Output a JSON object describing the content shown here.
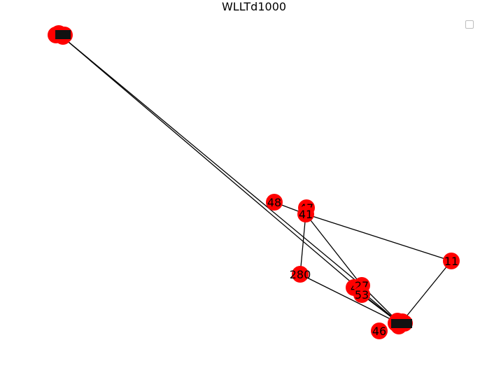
{
  "figure": {
    "title": "WLLTd1000",
    "legend": ""
  },
  "graph": {
    "node_color": "#ff0000",
    "edge_color": "#000000",
    "nodes": [
      {
        "id": "cluster_top",
        "label": "6"
      },
      {
        "id": "n48",
        "label": "48"
      },
      {
        "id": "n47",
        "label": "47"
      },
      {
        "id": "n41",
        "label": "41"
      },
      {
        "id": "n11",
        "label": "11"
      },
      {
        "id": "n280",
        "label": "280"
      },
      {
        "id": "n4",
        "label": "4"
      },
      {
        "id": "n27",
        "label": "27"
      },
      {
        "id": "n53",
        "label": "53"
      },
      {
        "id": "n46",
        "label": "46"
      },
      {
        "id": "cluster_bottom",
        "label": ""
      }
    ],
    "edges": [
      [
        "cluster_top",
        "cluster_bottom"
      ],
      [
        "cluster_top",
        "n27"
      ],
      [
        "n48",
        "n41"
      ],
      [
        "n41",
        "n11"
      ],
      [
        "n41",
        "n280"
      ],
      [
        "n41",
        "n27"
      ],
      [
        "n11",
        "cluster_bottom"
      ],
      [
        "n280",
        "cluster_bottom"
      ],
      [
        "n27",
        "cluster_bottom"
      ],
      [
        "n4",
        "cluster_bottom"
      ],
      [
        "n53",
        "cluster_bottom"
      ]
    ]
  }
}
